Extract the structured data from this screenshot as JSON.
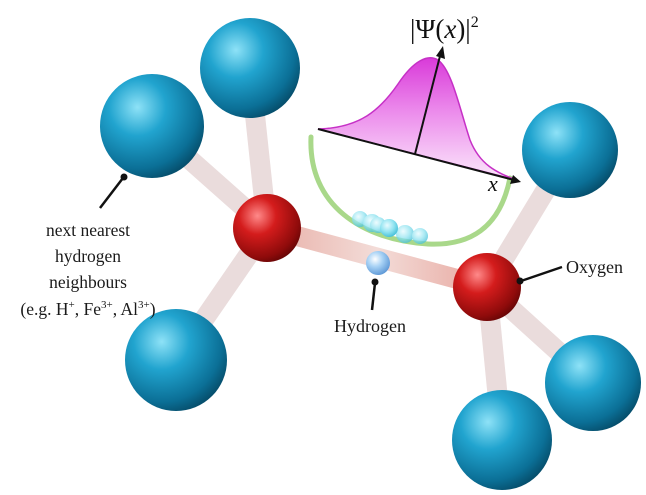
{
  "labels": {
    "oxygen": "Oxygen",
    "hydrogen": "Hydrogen",
    "neighbours": {
      "line1": "next nearest",
      "line2": "hydrogen",
      "line3": "neighbours",
      "line4_prefix": "(e.g. H",
      "ion1_charge": "+",
      "sep1": ", Fe",
      "ion2_charge": "3+",
      "sep2": ", Al",
      "ion3_charge": "3+",
      "line4_suffix": ")"
    }
  },
  "plot": {
    "ylabel_prefix": "|Ψ(",
    "ylabel_var": "x",
    "ylabel_suffix": ")|",
    "ylabel_exponent": "2",
    "xlabel": "x"
  },
  "colors": {
    "neighbour_atom": "#1a8bb5",
    "oxygen_atom": "#c41a1a",
    "hydrogen_atom": "#8fc4ef",
    "bond": "#e8d7d7",
    "potential_well": "#9ed478",
    "wavefunction": "#e060e0",
    "delocalized_proton": "#66d6e8"
  }
}
